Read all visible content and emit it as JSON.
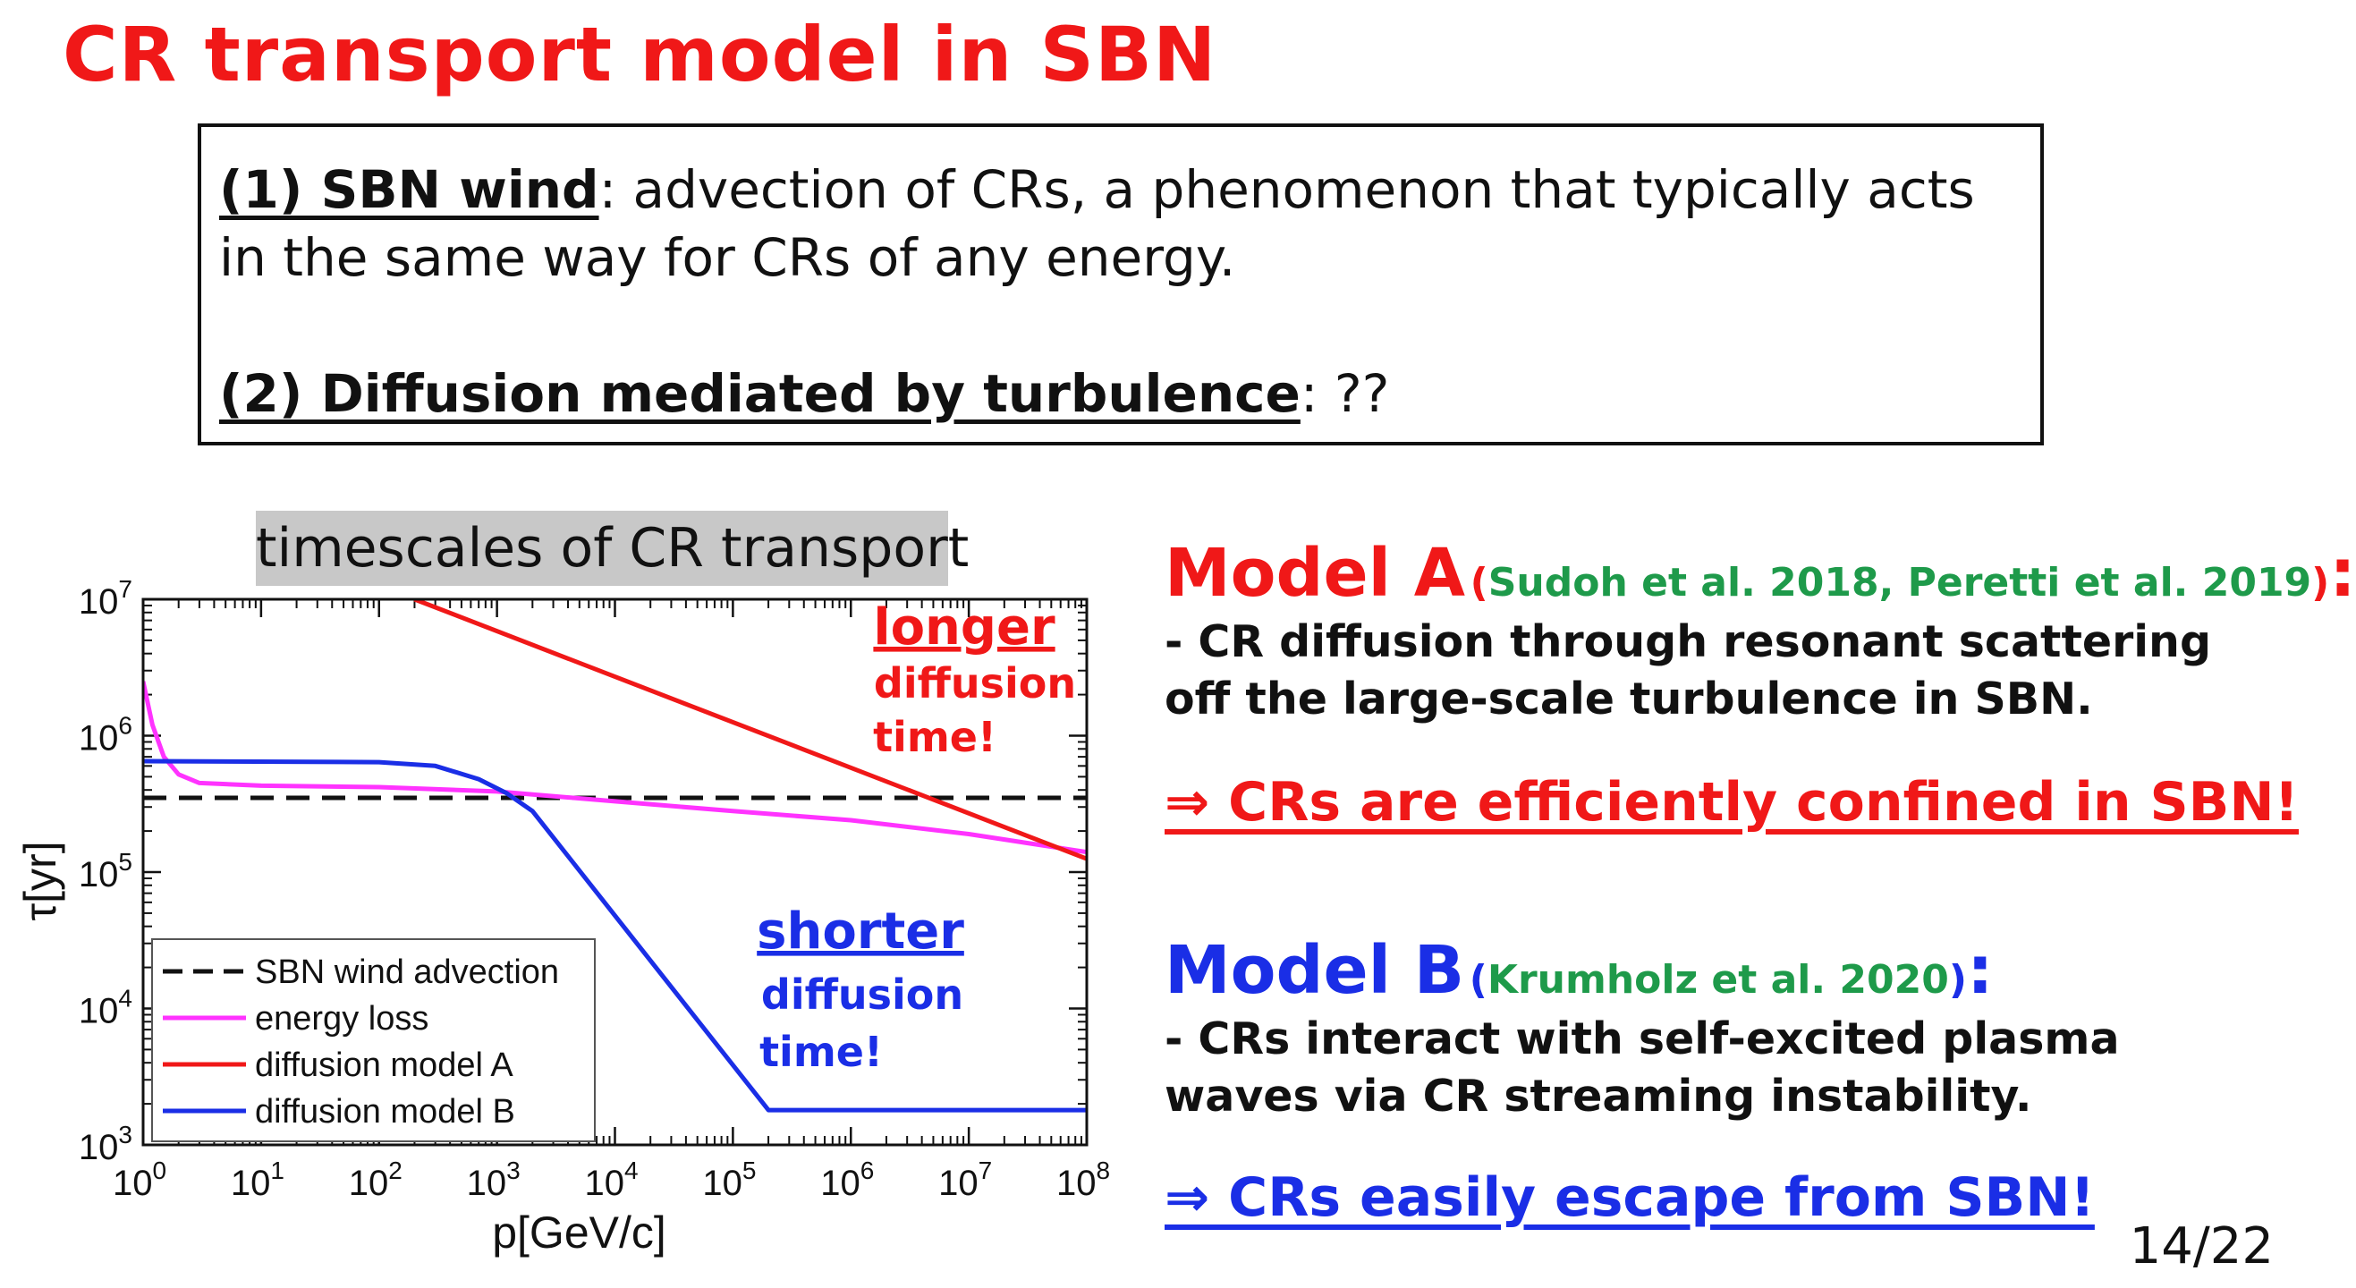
{
  "slide": {
    "title": "CR transport model in SBN",
    "page_number": "14/22"
  },
  "box": {
    "item1_head": "(1) SBN wind",
    "item1_body": ": advection of CRs, a phenomenon that typically acts in the same way for CRs of any energy.",
    "item2_head": "(2) Diffusion mediated by turbulence",
    "item2_body": ": ??"
  },
  "chart_title": "timescales of CR transport",
  "annotations": {
    "longer": [
      "longer",
      "diffusion",
      "time!"
    ],
    "shorter": [
      "shorter",
      "diffusion",
      "time!"
    ]
  },
  "models": {
    "a": {
      "name": "Model A",
      "ref_open": "(",
      "ref": "Sudoh et al. 2018, Peretti et al. 2019",
      "ref_close": ")",
      "colon": ":",
      "desc": "- CR diffusion through resonant scattering off the large-scale turbulence in SBN.",
      "conclusion": "⇒ CRs are efficiently confined in SBN!"
    },
    "b": {
      "name": "Model B",
      "ref_open": "(",
      "ref": "Krumholz et al. 2020",
      "ref_close": ")",
      "colon": ":",
      "desc": "- CRs interact with self-excited plasma waves via CR streaming instability.",
      "conclusion": "⇒ CRs easily escape from SBN!"
    }
  },
  "colors": {
    "title_red": "#f01818",
    "ref_green": "#1e9a4a",
    "model_b_blue": "#1a2ee6",
    "energy_loss_magenta": "#ff33ff"
  },
  "chart_data": {
    "type": "line",
    "xscale": "log",
    "yscale": "log",
    "xlim": [
      1,
      100000000
    ],
    "ylim": [
      1000,
      10000000
    ],
    "xlabel": "p[GeV/c]",
    "ylabel": "τ[yr]",
    "x_ticks": [
      {
        "base": "10",
        "exp": "0",
        "value": 1
      },
      {
        "base": "10",
        "exp": "1",
        "value": 10
      },
      {
        "base": "10",
        "exp": "2",
        "value": 100
      },
      {
        "base": "10",
        "exp": "3",
        "value": 1000
      },
      {
        "base": "10",
        "exp": "4",
        "value": 10000
      },
      {
        "base": "10",
        "exp": "5",
        "value": 100000
      },
      {
        "base": "10",
        "exp": "6",
        "value": 1000000
      },
      {
        "base": "10",
        "exp": "7",
        "value": 10000000
      },
      {
        "base": "10",
        "exp": "8",
        "value": 100000000
      }
    ],
    "y_ticks": [
      {
        "base": "10",
        "exp": "3",
        "value": 1000
      },
      {
        "base": "10",
        "exp": "4",
        "value": 10000
      },
      {
        "base": "10",
        "exp": "5",
        "value": 100000
      },
      {
        "base": "10",
        "exp": "6",
        "value": 1000000
      },
      {
        "base": "10",
        "exp": "7",
        "value": 10000000
      }
    ],
    "legend_position": "bottom-left",
    "series": [
      {
        "name": "SBN wind advection",
        "color": "#111111",
        "dash": true,
        "points": [
          [
            1,
            350000
          ],
          [
            100000000,
            350000
          ]
        ]
      },
      {
        "name": "energy loss",
        "color": "#ff33ff",
        "dash": false,
        "points": [
          [
            1,
            2500000
          ],
          [
            1.2,
            1200000
          ],
          [
            1.5,
            700000
          ],
          [
            2,
            520000
          ],
          [
            3,
            450000
          ],
          [
            10,
            430000
          ],
          [
            100,
            420000
          ],
          [
            1000,
            390000
          ],
          [
            10000,
            330000
          ],
          [
            100000,
            280000
          ],
          [
            1000000,
            240000
          ],
          [
            10000000,
            190000
          ],
          [
            100000000,
            140000
          ]
        ]
      },
      {
        "name": "diffusion model A",
        "color": "#f01818",
        "dash": false,
        "points": [
          [
            200,
            10000000
          ],
          [
            100000000,
            125000
          ]
        ]
      },
      {
        "name": "diffusion model B",
        "color": "#1a2ee6",
        "dash": false,
        "points": [
          [
            1,
            650000
          ],
          [
            100,
            640000
          ],
          [
            300,
            600000
          ],
          [
            700,
            480000
          ],
          [
            1200,
            380000
          ],
          [
            2000,
            280000
          ],
          [
            200000,
            1800
          ],
          [
            100000000,
            1800
          ]
        ]
      }
    ]
  }
}
